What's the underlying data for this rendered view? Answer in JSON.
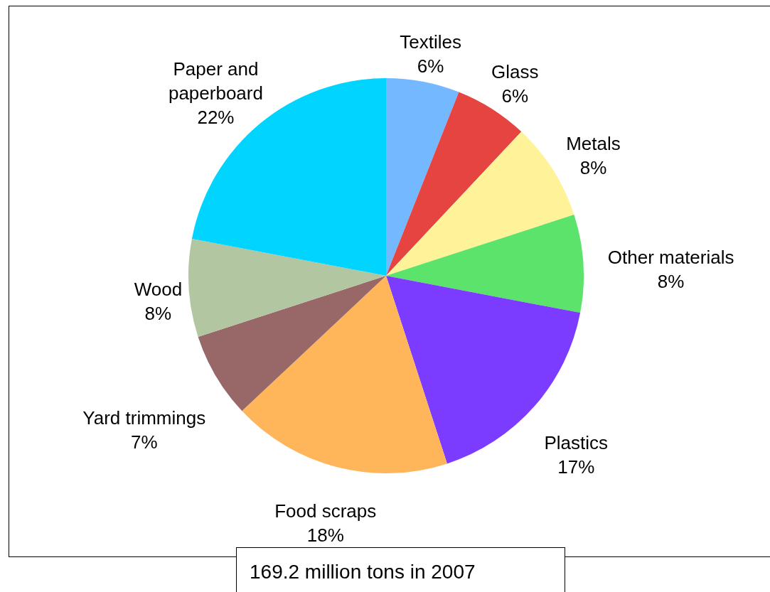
{
  "chart_data": {
    "type": "pie",
    "categories": [
      "Textiles",
      "Glass",
      "Metals",
      "Other materials",
      "Plastics",
      "Food scraps",
      "Yard trimmings",
      "Wood",
      "Paper and paperboard"
    ],
    "values": [
      6,
      6,
      8,
      8,
      17,
      18,
      7,
      8,
      22
    ],
    "value_labels": [
      "6%",
      "6%",
      "8%",
      "8%",
      "17%",
      "18%",
      "7%",
      "8%",
      "22%"
    ],
    "colors": [
      "#74b8ff",
      "#e54440",
      "#fff39a",
      "#5be36c",
      "#7b3cff",
      "#ffb65a",
      "#986868",
      "#b2c6a2",
      "#00d4ff"
    ],
    "legend": false,
    "annotations": [
      "169.2 million tons in 2007"
    ]
  }
}
